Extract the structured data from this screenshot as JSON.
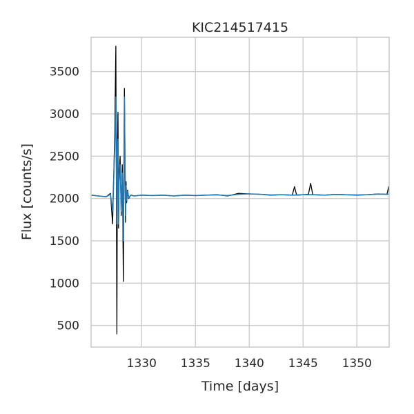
{
  "chart_data": {
    "type": "line",
    "title": "KIC214517415",
    "xlabel": "Time [days]",
    "ylabel": "Flux [counts/s]",
    "xlim": [
      1325.3,
      1353.0
    ],
    "ylim": [
      245,
      3905
    ],
    "xticks": [
      1330,
      1335,
      1340,
      1345,
      1350
    ],
    "yticks": [
      500,
      1000,
      1500,
      2000,
      2500,
      3000,
      3500
    ],
    "grid": true,
    "legend": "none",
    "colors": {
      "raw": "#000000",
      "model": "#1f77b4",
      "grid": "#cccccc",
      "spine": "#cccccc"
    },
    "series": [
      {
        "color": "#000000",
        "x": [
          1325.3,
          1326.0,
          1326.7,
          1327.1,
          1327.3,
          1327.5,
          1327.6,
          1327.7,
          1327.75,
          1327.8,
          1327.85,
          1327.9,
          1328.0,
          1328.1,
          1328.2,
          1328.3,
          1328.4,
          1328.5,
          1328.55,
          1328.6,
          1328.7,
          1328.8,
          1329.0,
          1329.3,
          1330.0,
          1331.0,
          1332.0,
          1333.0,
          1334.0,
          1335.0,
          1336.0,
          1337.0,
          1338.0,
          1339.0,
          1340.0,
          1341.0,
          1342.0,
          1343.0,
          1344.0,
          1344.2,
          1344.4,
          1345.0,
          1345.5,
          1345.7,
          1345.9,
          1347.0,
          1348.0,
          1349.0,
          1350.0,
          1351.0,
          1352.0,
          1352.8,
          1352.95,
          1353.0
        ],
        "y": [
          2040,
          2030,
          2020,
          2060,
          1700,
          2780,
          3800,
          400,
          2700,
          3020,
          1650,
          2300,
          2500,
          1800,
          2400,
          1020,
          3300,
          1720,
          2200,
          1950,
          2100,
          2000,
          2040,
          2030,
          2040,
          2035,
          2040,
          2030,
          2040,
          2035,
          2040,
          2045,
          2030,
          2060,
          2055,
          2050,
          2040,
          2045,
          2040,
          2140,
          2040,
          2045,
          2050,
          2180,
          2045,
          2040,
          2050,
          2045,
          2040,
          2045,
          2055,
          2050,
          2140,
          2050
        ]
      },
      {
        "color": "#1f77b4",
        "x": [
          1325.3,
          1326.0,
          1326.7,
          1327.1,
          1327.3,
          1327.5,
          1327.6,
          1327.7,
          1327.75,
          1327.8,
          1327.85,
          1327.9,
          1328.0,
          1328.1,
          1328.2,
          1328.3,
          1328.4,
          1328.5,
          1328.55,
          1328.6,
          1328.7,
          1328.8,
          1329.0,
          1329.3,
          1330.0,
          1331.0,
          1332.0,
          1333.0,
          1334.0,
          1335.0,
          1336.0,
          1337.0,
          1338.0,
          1339.0,
          1340.0,
          1341.0,
          1342.0,
          1343.0,
          1344.0,
          1345.0,
          1346.0,
          1347.0,
          1348.0,
          1349.0,
          1350.0,
          1351.0,
          1352.0,
          1353.0
        ],
        "y": [
          2040,
          2030,
          2020,
          2050,
          1850,
          2600,
          3200,
          1700,
          2500,
          2700,
          1700,
          2200,
          2400,
          1850,
          2300,
          1500,
          3200,
          1800,
          2150,
          1980,
          2080,
          2010,
          2040,
          2030,
          2040,
          2035,
          2040,
          2030,
          2040,
          2035,
          2040,
          2042,
          2035,
          2050,
          2055,
          2050,
          2042,
          2045,
          2040,
          2045,
          2045,
          2040,
          2048,
          2044,
          2042,
          2045,
          2052,
          2050
        ]
      }
    ]
  }
}
